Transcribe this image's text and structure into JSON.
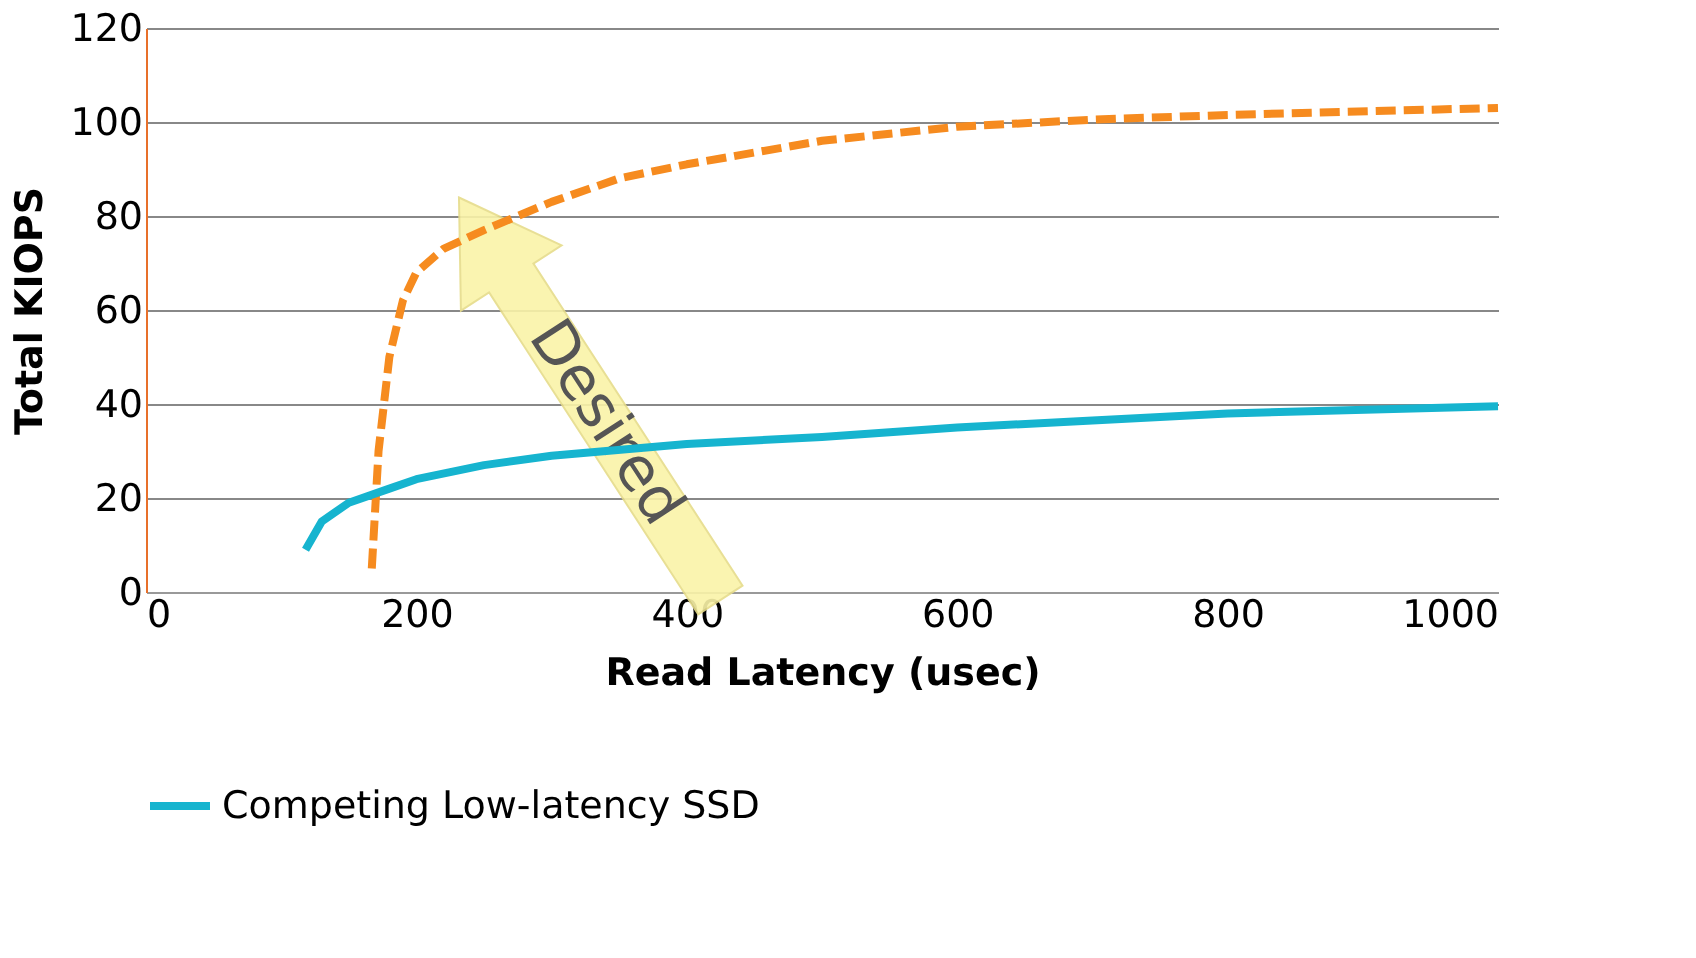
{
  "chart_data": {
    "type": "line",
    "xlabel": "Read Latency (usec)",
    "ylabel": "Total KIOPS",
    "xlim": [
      0,
      1000
    ],
    "xticks": [
      0,
      200,
      400,
      600,
      800,
      1000
    ],
    "ylim": [
      0,
      120
    ],
    "yticks": [
      0,
      20,
      40,
      60,
      80,
      100,
      120
    ],
    "grid": "y",
    "legend": "bottom",
    "series": [
      {
        "color": "#f68b1f",
        "line_style": "dashed",
        "x": [
          167,
          172,
          180,
          190,
          200,
          220,
          250,
          300,
          350,
          400,
          500,
          600,
          700,
          800,
          1000
        ],
        "values": [
          5,
          30,
          50,
          62,
          68,
          73,
          77,
          83,
          88,
          91,
          96,
          99,
          100.5,
          101.5,
          103
        ]
      },
      {
        "name": "Competing Low-latency SSD",
        "color": "#16b4cf",
        "line_style": "solid",
        "x": [
          118,
          130,
          150,
          180,
          200,
          250,
          300,
          400,
          500,
          600,
          700,
          800,
          1000
        ],
        "values": [
          9,
          15,
          19,
          22,
          24,
          27,
          29,
          31.5,
          33,
          35,
          36.5,
          38,
          39.5
        ]
      }
    ],
    "annotations": [
      "Desired"
    ]
  }
}
